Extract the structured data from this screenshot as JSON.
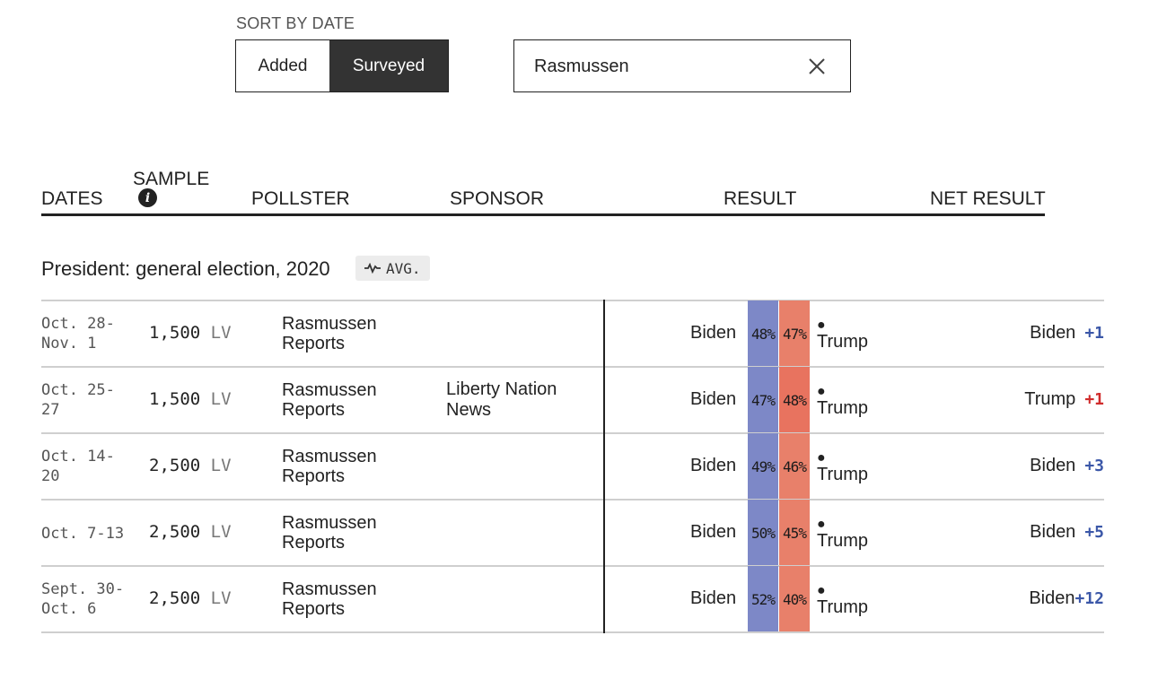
{
  "sort": {
    "label": "SORT BY DATE",
    "options": [
      "Added",
      "Surveyed"
    ],
    "selected": "Surveyed"
  },
  "search": {
    "value": "Rasmussen",
    "clear_icon": "close-icon"
  },
  "table_header": {
    "dates": "DATES",
    "sample": "SAMPLE",
    "sample_info_icon": "info-icon",
    "pollster": "POLLSTER",
    "sponsor": "SPONSOR",
    "result": "RESULT",
    "net_result": "NET RESULT"
  },
  "section": {
    "title": "President: general election, 2020",
    "avg_label": "AVG.",
    "avg_icon": "pulse-icon"
  },
  "colors": {
    "biden_bar": "#7d88c7",
    "trump_bar": "#e8806a",
    "biden_margin": "#3b57a8",
    "trump_margin": "#d02c2c"
  },
  "rows": [
    {
      "dates_line1": "Oct. 28-",
      "dates_line2": "Nov. 1",
      "sample_n": "1,500",
      "sample_type": "LV",
      "pollster_line1": "Rasmussen",
      "pollster_line2": "Reports",
      "sponsor_line1": "",
      "sponsor_line2": "",
      "biden_label": "Biden",
      "biden_pct": "48%",
      "trump_pct": "47%",
      "trump_label": "Trump",
      "net_leader": "Biden",
      "net_margin": "+1"
    },
    {
      "dates_line1": "Oct. 25-",
      "dates_line2": "27",
      "sample_n": "1,500",
      "sample_type": "LV",
      "pollster_line1": "Rasmussen",
      "pollster_line2": "Reports",
      "sponsor_line1": "Liberty Nation",
      "sponsor_line2": "News",
      "biden_label": "Biden",
      "biden_pct": "47%",
      "trump_pct": "48%",
      "trump_label": "Trump",
      "net_leader": "Trump",
      "net_margin": "+1"
    },
    {
      "dates_line1": "Oct. 14-",
      "dates_line2": "20",
      "sample_n": "2,500",
      "sample_type": "LV",
      "pollster_line1": "Rasmussen",
      "pollster_line2": "Reports",
      "sponsor_line1": "",
      "sponsor_line2": "",
      "biden_label": "Biden",
      "biden_pct": "49%",
      "trump_pct": "46%",
      "trump_label": "Trump",
      "net_leader": "Biden",
      "net_margin": "+3"
    },
    {
      "dates_line1": "Oct. 7-13",
      "dates_line2": "",
      "sample_n": "2,500",
      "sample_type": "LV",
      "pollster_line1": "Rasmussen",
      "pollster_line2": "Reports",
      "sponsor_line1": "",
      "sponsor_line2": "",
      "biden_label": "Biden",
      "biden_pct": "50%",
      "trump_pct": "45%",
      "trump_label": "Trump",
      "net_leader": "Biden",
      "net_margin": "+5"
    },
    {
      "dates_line1": "Sept. 30-",
      "dates_line2": "Oct. 6",
      "sample_n": "2,500",
      "sample_type": "LV",
      "pollster_line1": "Rasmussen",
      "pollster_line2": "Reports",
      "sponsor_line1": "",
      "sponsor_line2": "",
      "biden_label": "Biden",
      "biden_pct": "52%",
      "trump_pct": "40%",
      "trump_label": "Trump",
      "net_leader": "Biden",
      "net_margin": "+12"
    }
  ]
}
